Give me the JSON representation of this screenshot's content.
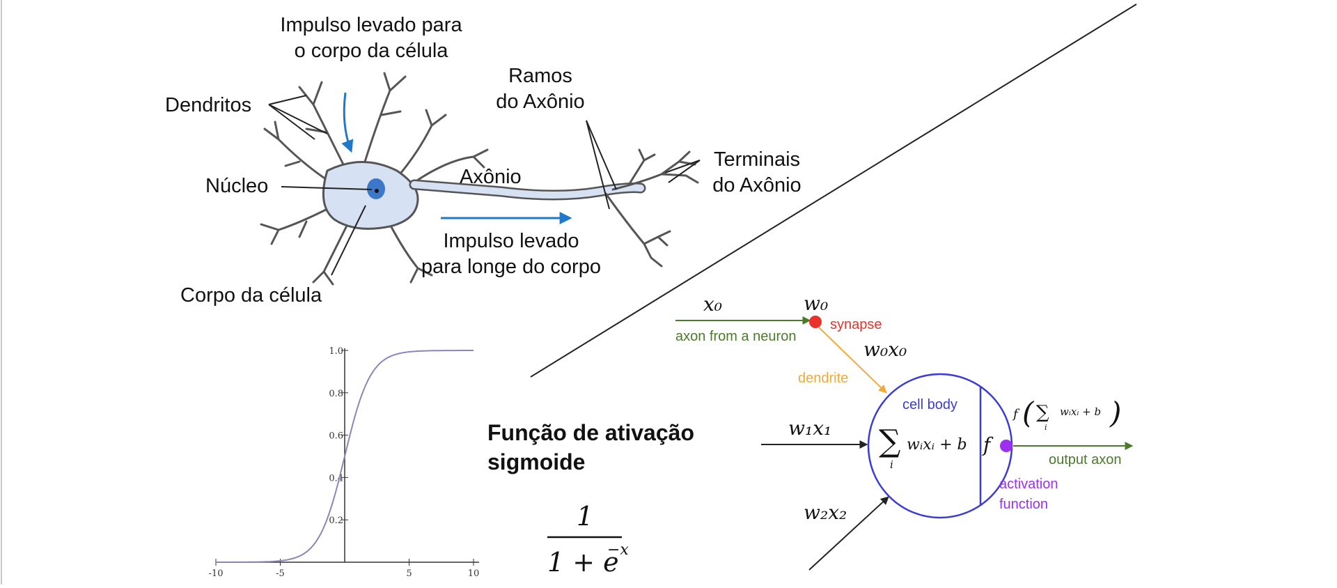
{
  "neuron_bio": {
    "impulse_in": [
      "Impulso levado para",
      "o corpo da célula"
    ],
    "dendrites": "Dendritos",
    "nucleus": "Núcleo",
    "cell_body": "Corpo da célula",
    "axon": "Axônio",
    "axon_branches": [
      "Ramos",
      "do Axônio"
    ],
    "axon_terminals": [
      "Terminais",
      "do Axônio"
    ],
    "impulse_out": [
      "Impulso levado",
      "para longe do corpo"
    ],
    "impulse_color": "#1f78c8",
    "cell_fill": "#d6e2f3"
  },
  "activation": {
    "heading": [
      "Função de ativação",
      "sigmoide"
    ],
    "numerator": "1",
    "denominator": "1 + e",
    "exponent": "−x"
  },
  "artificial_neuron": {
    "x0": "x₀",
    "w0": "w₀",
    "w0x0": "w₀x₀",
    "w1x1": "w₁x₁",
    "w2x2": "w₂x₂",
    "synapse": "synapse",
    "axon_from_neuron": "axon from a neuron",
    "dendrite": "dendrite",
    "cell_body": "cell body",
    "sum": "∑",
    "sum_index": "i",
    "sum_expr": "wᵢxᵢ + b",
    "f": "f",
    "f_expr_left": "f",
    "f_expr_inner": "wᵢxᵢ + b",
    "activation_function": [
      "activation",
      "function"
    ],
    "output_axon": "output axon",
    "colors": {
      "green": "#4a7a2a",
      "red": "#e8322a",
      "orange": "#f2a93b",
      "blue": "#3b3bd6",
      "purple": "#9b30f0"
    }
  },
  "chart_data": {
    "type": "line",
    "title": "",
    "xlabel": "",
    "ylabel": "",
    "xlim": [
      -10,
      10
    ],
    "ylim": [
      0,
      1
    ],
    "x_ticks": [
      "-10",
      "-5",
      "5",
      "10"
    ],
    "y_ticks": [
      "0.2",
      "0.4",
      "0.6",
      "0.8",
      "1.0"
    ],
    "function": "1/(1+e^-x)",
    "x": [
      -10,
      -8,
      -6,
      -5,
      -4,
      -3,
      -2,
      -1,
      0,
      1,
      2,
      3,
      4,
      5,
      6,
      8,
      10
    ],
    "y": [
      5e-05,
      0.0003,
      0.0025,
      0.0067,
      0.018,
      0.047,
      0.119,
      0.269,
      0.5,
      0.731,
      0.881,
      0.953,
      0.982,
      0.993,
      0.9975,
      0.9997,
      0.99995
    ],
    "line_color": "#8a86b8",
    "grid": false
  }
}
